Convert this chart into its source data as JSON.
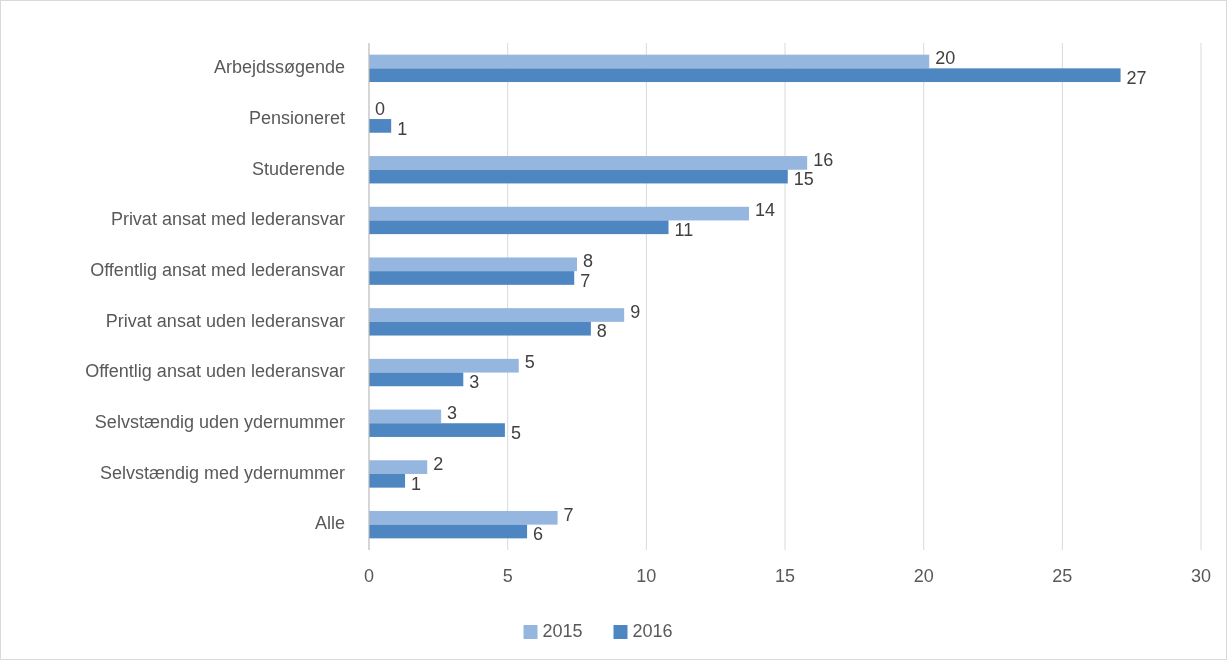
{
  "chart_data": {
    "type": "bar",
    "orientation": "horizontal",
    "categories": [
      "Arbejdssøgende",
      "Pensioneret",
      "Studerende",
      "Privat ansat med lederansvar",
      "Offentlig ansat med lederansvar",
      "Privat ansat uden lederansvar",
      "Offentlig ansat uden lederansvar",
      "Selvstændig uden ydernummer",
      "Selvstændig med ydernummer",
      "Alle"
    ],
    "series": [
      {
        "name": "2015",
        "color": "#95b6df",
        "values": [
          20.2,
          0,
          15.8,
          13.7,
          7.5,
          9.2,
          5.4,
          2.6,
          2.1,
          6.8
        ],
        "value_labels": [
          "20",
          "0",
          "16",
          "14",
          "8",
          "9",
          "5",
          "3",
          "2",
          "7"
        ]
      },
      {
        "name": "2016",
        "color": "#4e86c1",
        "values": [
          27.1,
          0.8,
          15.1,
          10.8,
          7.4,
          8.0,
          3.4,
          4.9,
          1.3,
          5.7
        ],
        "value_labels": [
          "27",
          "1",
          "15",
          "11",
          "7",
          "8",
          "3",
          "5",
          "1",
          "6"
        ]
      }
    ],
    "xlim": [
      0,
      30
    ],
    "xticks": [
      0,
      5,
      10,
      15,
      20,
      25,
      30
    ],
    "grid": "x",
    "legend": "bottom"
  }
}
